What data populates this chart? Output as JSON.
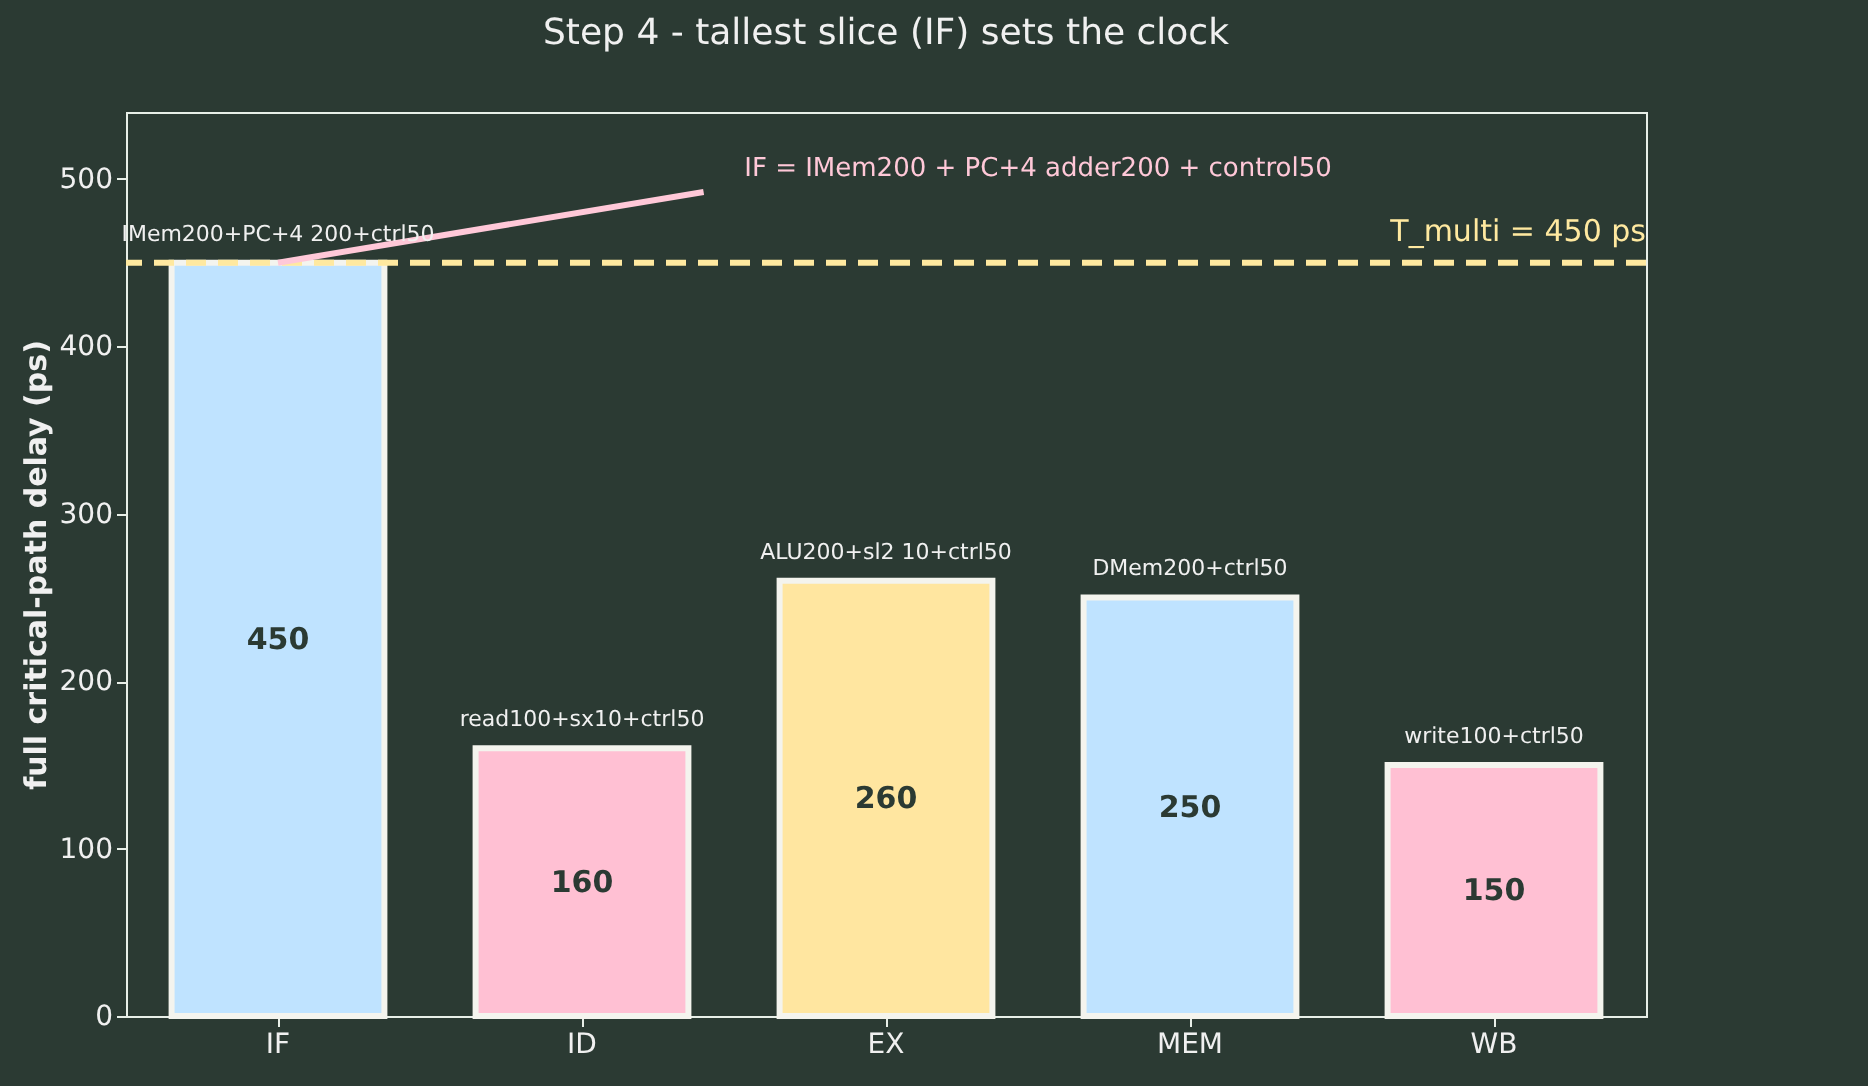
{
  "chart_data": {
    "type": "bar",
    "title": "Step 4 - tallest slice (IF) sets the clock",
    "ylabel": "full critical-path delay (ps)",
    "categories": [
      "IF",
      "ID",
      "EX",
      "MEM",
      "WB"
    ],
    "values": [
      450,
      160,
      260,
      250,
      150
    ],
    "colors": [
      "#bfe3ff",
      "#ffc0d3",
      "#ffe6a0",
      "#bfe3ff",
      "#ffc0d3"
    ],
    "ylim": [
      0,
      540
    ],
    "yticks": [
      0,
      100,
      200,
      300,
      400,
      500
    ],
    "data_labels": true,
    "ref_lines": [
      {
        "axis": "y",
        "value": 450,
        "label": "T_multi = 450 ps",
        "color": "#ffe9a0",
        "line_style": "dashed"
      }
    ],
    "annotations": [
      "IF = IMem200 + PC+4 adder200 + control50",
      {
        "text": "IMem200+PC+4 200+ctrl50",
        "x": "IF",
        "y": 450
      },
      {
        "text": "read100+sx10+ctrl50",
        "x": "ID",
        "y": 160
      },
      {
        "text": "ALU200+sl2 10+ctrl50",
        "x": "EX",
        "y": 260
      },
      {
        "text": "DMem200+ctrl50",
        "x": "MEM",
        "y": 250
      },
      {
        "text": "write100+ctrl50",
        "x": "WB",
        "y": 150
      }
    ]
  }
}
